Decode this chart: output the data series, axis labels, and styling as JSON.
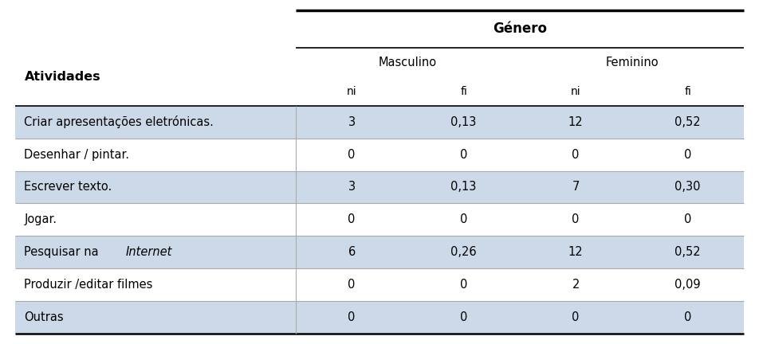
{
  "title_col": "Atividades",
  "gender_header": "Género",
  "masc_header": "Masculino",
  "fem_header": "Feminino",
  "sub_headers": [
    "ni",
    "fi",
    "ni",
    "fi"
  ],
  "rows": [
    {
      "label": "Criar apresentações eletrónicas.",
      "italic_word": null,
      "masc_ni": "3",
      "masc_fi": "0,13",
      "fem_ni": "12",
      "fem_fi": "0,52"
    },
    {
      "label": "Desenhar / pintar.",
      "italic_word": null,
      "masc_ni": "0",
      "masc_fi": "0",
      "fem_ni": "0",
      "fem_fi": "0"
    },
    {
      "label": "Escrever texto.",
      "italic_word": null,
      "masc_ni": "3",
      "masc_fi": "0,13",
      "fem_ni": "7",
      "fem_fi": "0,30"
    },
    {
      "label": "Jogar.",
      "italic_word": null,
      "masc_ni": "0",
      "masc_fi": "0",
      "fem_ni": "0",
      "fem_fi": "0"
    },
    {
      "label": "Pesquisar na ",
      "italic_word": "Internet",
      "masc_ni": "6",
      "masc_fi": "0,26",
      "fem_ni": "12",
      "fem_fi": "0,52"
    },
    {
      "label": "Produzir /editar filmes",
      "italic_word": null,
      "masc_ni": "0",
      "masc_fi": "0",
      "fem_ni": "2",
      "fem_fi": "0,09"
    },
    {
      "label": "Outras",
      "italic_word": null,
      "masc_ni": "0",
      "masc_fi": "0",
      "fem_ni": "0",
      "fem_fi": "0"
    }
  ],
  "row_colors": [
    "#ccd9e8",
    "#ffffff",
    "#ccd9e8",
    "#ffffff",
    "#ccd9e8",
    "#ffffff",
    "#ccd9e8"
  ],
  "fig_bg": "#ffffff",
  "font_size": 10.5,
  "header_font_size": 10.5,
  "bold_font_size": 11.5
}
